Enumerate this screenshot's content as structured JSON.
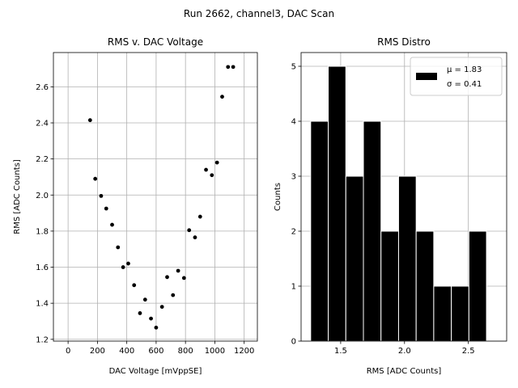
{
  "suptitle": "Run 2662, channel3, DAC Scan",
  "chart_data": [
    {
      "type": "scatter",
      "title": "RMS v. DAC Voltage",
      "xlabel": "DAC Voltage [mVppSE]",
      "ylabel": "RMS [ADC Counts]",
      "xlim": [
        -100,
        1290
      ],
      "ylim": [
        1.19,
        2.79
      ],
      "xticks": [
        0,
        200,
        400,
        600,
        800,
        1000,
        1200
      ],
      "yticks": [
        1.2,
        1.4,
        1.6,
        1.8,
        2.0,
        2.2,
        2.4,
        2.6
      ],
      "xtick_labels": [
        "0",
        "200",
        "400",
        "600",
        "800",
        "1000",
        "1200"
      ],
      "ytick_labels": [
        "1.2",
        "1.4",
        "1.6",
        "1.8",
        "2.0",
        "2.2",
        "2.4",
        "2.6"
      ],
      "grid": true,
      "color": "#000000",
      "points": [
        {
          "x": 150,
          "y": 2.415
        },
        {
          "x": 185,
          "y": 2.09
        },
        {
          "x": 225,
          "y": 1.995
        },
        {
          "x": 260,
          "y": 1.925
        },
        {
          "x": 300,
          "y": 1.835
        },
        {
          "x": 340,
          "y": 1.71
        },
        {
          "x": 375,
          "y": 1.6
        },
        {
          "x": 410,
          "y": 1.62
        },
        {
          "x": 450,
          "y": 1.5
        },
        {
          "x": 490,
          "y": 1.345
        },
        {
          "x": 525,
          "y": 1.42
        },
        {
          "x": 565,
          "y": 1.315
        },
        {
          "x": 600,
          "y": 1.265
        },
        {
          "x": 640,
          "y": 1.38
        },
        {
          "x": 675,
          "y": 1.545
        },
        {
          "x": 715,
          "y": 1.445
        },
        {
          "x": 750,
          "y": 1.58
        },
        {
          "x": 790,
          "y": 1.54
        },
        {
          "x": 825,
          "y": 1.805
        },
        {
          "x": 865,
          "y": 1.765
        },
        {
          "x": 900,
          "y": 1.88
        },
        {
          "x": 940,
          "y": 2.14
        },
        {
          "x": 980,
          "y": 2.11
        },
        {
          "x": 1015,
          "y": 2.18
        },
        {
          "x": 1050,
          "y": 2.545
        },
        {
          "x": 1090,
          "y": 2.71
        },
        {
          "x": 1125,
          "y": 2.71
        }
      ]
    },
    {
      "type": "bar",
      "title": "RMS Distro",
      "xlabel": "RMS [ADC Counts]",
      "ylabel": "Counts",
      "xlim": [
        1.19,
        2.8
      ],
      "ylim": [
        0,
        5.25
      ],
      "xticks": [
        1.5,
        2.0,
        2.5
      ],
      "yticks": [
        0,
        1,
        2,
        3,
        4,
        5
      ],
      "xtick_labels": [
        "1.5",
        "2.0",
        "2.5"
      ],
      "ytick_labels": [
        "0",
        "1",
        "2",
        "3",
        "4",
        "5"
      ],
      "grid": true,
      "bar_color": "#000000",
      "edge_color": "#ffffff",
      "bin_start": 1.265,
      "bin_width": 0.1377,
      "counts": [
        4,
        5,
        3,
        4,
        2,
        3,
        2,
        1,
        1,
        2
      ],
      "legend": {
        "position": "upper-right",
        "lines": [
          "μ = 1.83",
          "σ = 0.41"
        ]
      }
    }
  ]
}
